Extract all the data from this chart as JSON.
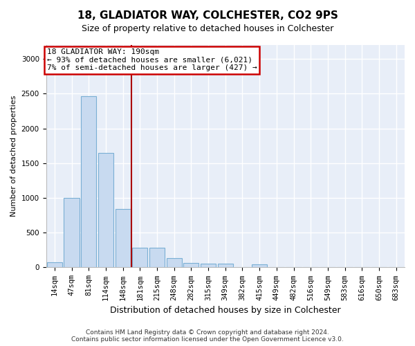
{
  "title_line1": "18, GLADIATOR WAY, COLCHESTER, CO2 9PS",
  "title_line2": "Size of property relative to detached houses in Colchester",
  "xlabel": "Distribution of detached houses by size in Colchester",
  "ylabel": "Number of detached properties",
  "footer_line1": "Contains HM Land Registry data © Crown copyright and database right 2024.",
  "footer_line2": "Contains public sector information licensed under the Open Government Licence v3.0.",
  "bin_labels": [
    "14sqm",
    "47sqm",
    "81sqm",
    "114sqm",
    "148sqm",
    "181sqm",
    "215sqm",
    "248sqm",
    "282sqm",
    "315sqm",
    "349sqm",
    "382sqm",
    "415sqm",
    "449sqm",
    "482sqm",
    "516sqm",
    "549sqm",
    "583sqm",
    "616sqm",
    "650sqm",
    "683sqm"
  ],
  "bar_heights": [
    70,
    995,
    2465,
    1650,
    840,
    280,
    280,
    130,
    60,
    55,
    55,
    0,
    40,
    0,
    0,
    0,
    0,
    0,
    0,
    0,
    0
  ],
  "bar_color": "#c8daf0",
  "bar_edge_color": "#7aafd4",
  "vline_color": "#aa0000",
  "vline_x_index": 4.5,
  "vline_label": "18 GLADIATOR WAY: 190sqm",
  "annotation_line2": "← 93% of detached houses are smaller (6,021)",
  "annotation_line3": "7% of semi-detached houses are larger (427) →",
  "annotation_box_color": "#ffffff",
  "annotation_box_edge_color": "#cc0000",
  "ylim": [
    0,
    3200
  ],
  "yticks": [
    0,
    500,
    1000,
    1500,
    2000,
    2500,
    3000
  ],
  "background_color": "#ffffff",
  "plot_bg_color": "#e8eef8",
  "grid_color": "#ffffff",
  "title_fontsize": 11,
  "subtitle_fontsize": 9,
  "tick_fontsize": 7.5,
  "ylabel_fontsize": 8,
  "xlabel_fontsize": 9,
  "footer_fontsize": 6.5
}
